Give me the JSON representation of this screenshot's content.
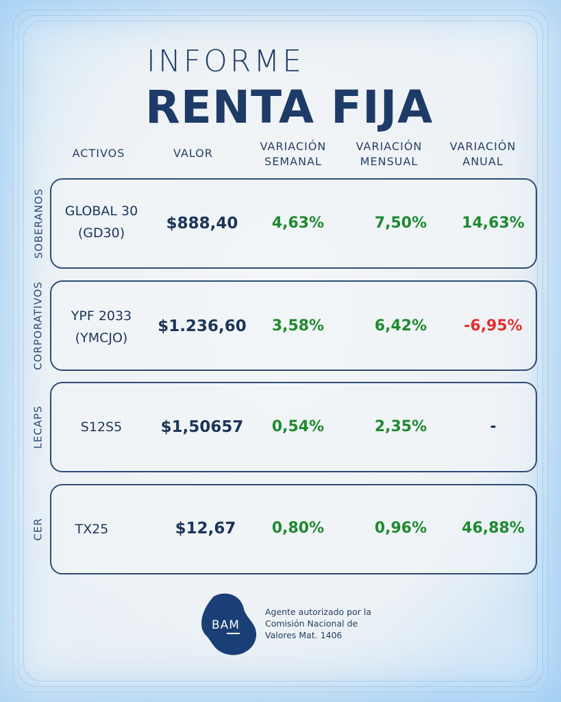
{
  "title": {
    "line1": "INFORME",
    "line2": "RENTA FIJA"
  },
  "headers": {
    "activos": "ACTIVOS",
    "valor": "VALOR",
    "semanal_1": "VARIACIÓN",
    "semanal_2": "SEMANAL",
    "mensual_1": "VARIACIÓN",
    "mensual_2": "MENSUAL",
    "anual_1": "VARIACIÓN",
    "anual_2": "ANUAL"
  },
  "rows": [
    {
      "category": "SOBERANOS",
      "asset_line1": "GLOBAL 30",
      "asset_line2": "(GD30)",
      "valor": "$888,40",
      "semanal": "4,63%",
      "mensual": "7,50%",
      "anual": "14,63%"
    },
    {
      "category": "CORPORATIVOS",
      "asset_line1": "YPF 2033",
      "asset_line2": "(YMCJO)",
      "valor": "$1.236,60",
      "semanal": "3,58%",
      "mensual": "6,42%",
      "anual": "-6,95%"
    },
    {
      "category": "LECAPS",
      "asset_line1": "S12S5",
      "asset_line2": "",
      "valor": "$1,50657",
      "semanal": "0,54%",
      "mensual": "2,35%",
      "anual": "-"
    },
    {
      "category": "CER",
      "asset_line1": "TX25",
      "asset_line2": "",
      "valor": "$12,67",
      "semanal": "0,80%",
      "mensual": "0,96%",
      "anual": "46,88%"
    }
  ],
  "footer": {
    "logo": "BAM",
    "legal_1": "Agente autorizado por la",
    "legal_2": "Comisión Nacional de",
    "legal_3": "Valores Mat. 1406"
  },
  "colors": {
    "positive": "#1f8a2f",
    "negative": "#e0302e",
    "navy": "#1d3b66"
  }
}
